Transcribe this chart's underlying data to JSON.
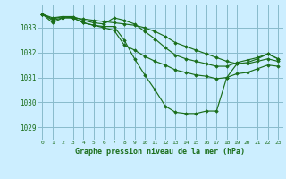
{
  "title": "Graphe pression niveau de la mer (hPa)",
  "background_color": "#cceeff",
  "grid_color": "#88bbcc",
  "line_color": "#1a6e1a",
  "xlim": [
    -0.5,
    23.5
  ],
  "ylim": [
    1028.5,
    1033.9
  ],
  "yticks": [
    1029,
    1030,
    1031,
    1032,
    1033
  ],
  "xticks": [
    0,
    1,
    2,
    3,
    4,
    5,
    6,
    7,
    8,
    9,
    10,
    11,
    12,
    13,
    14,
    15,
    16,
    17,
    18,
    19,
    20,
    21,
    22,
    23
  ],
  "lines": [
    {
      "x": [
        0,
        1,
        2,
        3,
        4,
        5,
        6,
        7,
        8,
        9,
        10,
        11,
        12,
        13,
        14,
        15,
        16,
        17,
        18,
        19,
        20,
        21,
        22,
        23
      ],
      "y": [
        1033.55,
        1033.2,
        1033.4,
        1033.4,
        1033.2,
        1033.1,
        1033.05,
        1033.05,
        1032.5,
        1031.75,
        1031.1,
        1030.5,
        1029.85,
        1029.6,
        1029.55,
        1029.55,
        1029.65,
        1029.65,
        1031.0,
        1031.55,
        1031.6,
        1031.75,
        1031.95,
        1031.75
      ]
    },
    {
      "x": [
        0,
        1,
        2,
        3,
        4,
        5,
        6,
        7,
        8,
        9,
        10,
        11,
        12,
        13,
        14,
        15,
        16,
        17,
        18,
        19,
        20,
        21,
        22,
        23
      ],
      "y": [
        1033.55,
        1033.4,
        1033.45,
        1033.4,
        1033.35,
        1033.3,
        1033.25,
        1033.2,
        1033.15,
        1033.1,
        1033.0,
        1032.85,
        1032.65,
        1032.4,
        1032.25,
        1032.1,
        1031.95,
        1031.8,
        1031.65,
        1031.55,
        1031.55,
        1031.65,
        1031.75,
        1031.65
      ]
    },
    {
      "x": [
        0,
        1,
        2,
        3,
        4,
        5,
        6,
        7,
        8,
        9,
        10,
        11,
        12,
        13,
        14,
        15,
        16,
        17,
        18,
        19,
        20,
        21,
        22,
        23
      ],
      "y": [
        1033.55,
        1033.35,
        1033.45,
        1033.45,
        1033.3,
        1033.2,
        1033.15,
        1033.4,
        1033.3,
        1033.15,
        1032.85,
        1032.55,
        1032.2,
        1031.9,
        1031.75,
        1031.65,
        1031.55,
        1031.45,
        1031.45,
        1031.6,
        1031.7,
        1031.8,
        1031.95,
        1031.75
      ]
    },
    {
      "x": [
        0,
        1,
        2,
        3,
        4,
        5,
        6,
        7,
        8,
        9,
        10,
        11,
        12,
        13,
        14,
        15,
        16,
        17,
        18,
        19,
        20,
        21,
        22,
        23
      ],
      "y": [
        1033.55,
        1033.3,
        1033.4,
        1033.4,
        1033.2,
        1033.1,
        1033.0,
        1032.9,
        1032.3,
        1032.1,
        1031.85,
        1031.65,
        1031.5,
        1031.3,
        1031.2,
        1031.1,
        1031.05,
        1030.95,
        1031.0,
        1031.15,
        1031.2,
        1031.35,
        1031.5,
        1031.45
      ]
    }
  ]
}
